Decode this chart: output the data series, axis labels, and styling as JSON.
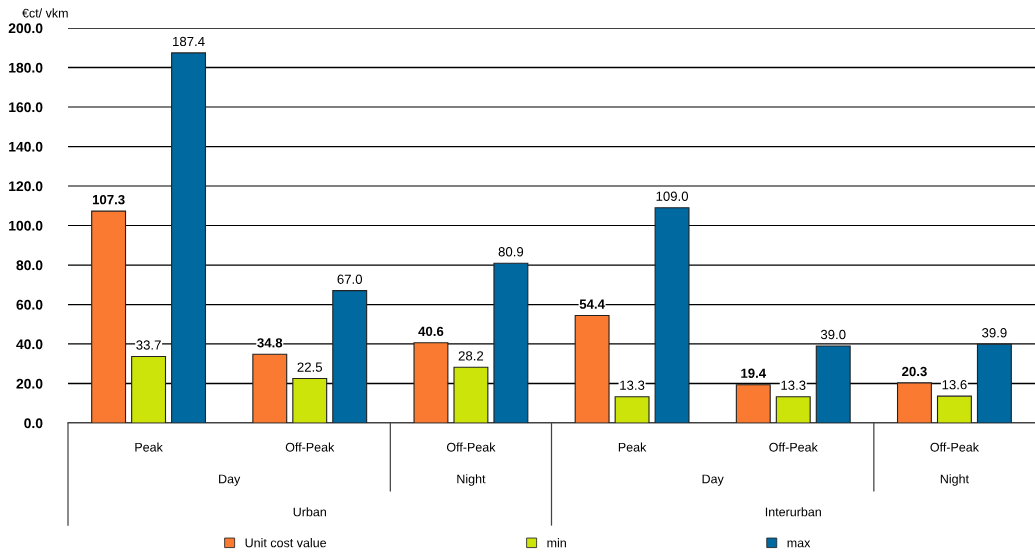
{
  "chart_data": {
    "type": "bar",
    "ylabel": "€ct/ vkm",
    "categories": [
      "Peak",
      "Off-Peak",
      "Off-Peak",
      "Peak",
      "Off-Peak",
      "Off-Peak"
    ],
    "annotations": [
      "Day",
      "Night",
      "Day",
      "Night",
      "Urban",
      "Interurban"
    ],
    "series": [
      {
        "name": "Unit cost value",
        "color": "#f97a30",
        "values": [
          107.3,
          34.8,
          40.6,
          54.4,
          19.4,
          20.3
        ],
        "value_labels": [
          "107.3",
          "34.8",
          "40.6",
          "54.4",
          "19.4",
          "20.3"
        ]
      },
      {
        "name": "min",
        "color": "#cce40a",
        "values": [
          33.7,
          22.5,
          28.2,
          13.3,
          13.3,
          13.6
        ],
        "value_labels": [
          "33.7",
          "22.5",
          "28.2",
          "13.3",
          "13.3",
          "13.6"
        ]
      },
      {
        "name": "max",
        "color": "#0069a0",
        "values": [
          187.4,
          67.0,
          80.9,
          109.0,
          39.0,
          39.9
        ],
        "value_labels": [
          "187.4",
          "67.0",
          "80.9",
          "109.0",
          "39.0",
          "39.9"
        ]
      }
    ],
    "ylim": [
      0,
      200
    ],
    "yticks": [
      {
        "value": 0,
        "label": "0.0"
      },
      {
        "value": 20,
        "label": "20.0"
      },
      {
        "value": 40,
        "label": "40.0"
      },
      {
        "value": 60,
        "label": "60.0"
      },
      {
        "value": 80,
        "label": "80.0"
      },
      {
        "value": 100,
        "label": "100.0"
      },
      {
        "value": 120,
        "label": "120.0"
      },
      {
        "value": 140,
        "label": "140.0"
      },
      {
        "value": 160,
        "label": "160.0"
      },
      {
        "value": 180,
        "label": "180.0"
      },
      {
        "value": 200,
        "label": "200.0"
      }
    ],
    "grid": "y",
    "legend": "bottom"
  }
}
